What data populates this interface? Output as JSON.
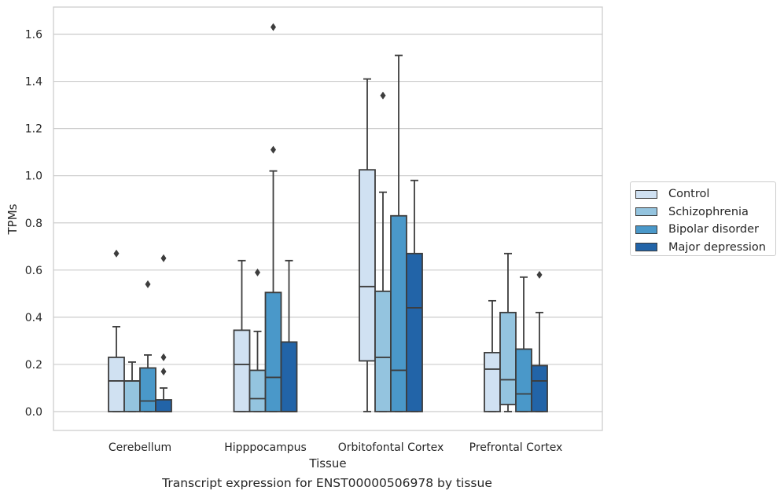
{
  "caption": "Transcript expression for ENST00000506978 by tissue",
  "chart_data": {
    "type": "box",
    "title": "",
    "xlabel": "Tissue",
    "ylabel": "TPMs",
    "ylim": [
      -0.08,
      1.72
    ],
    "yticks": [
      "0.0",
      "0.2",
      "0.4",
      "0.6",
      "0.8",
      "1.0",
      "1.2",
      "1.4",
      "1.6"
    ],
    "grid": "horizontal",
    "legend_position": "right",
    "categories": [
      "Cerebellum",
      "Hipppocampus",
      "Orbitofontal Cortex",
      "Prefrontal Cortex"
    ],
    "series": [
      {
        "name": "Control",
        "color": "#d0e1f2",
        "boxes": [
          {
            "whislo": 0.0,
            "q1": 0.0,
            "med": 0.13,
            "q3": 0.23,
            "whishi": 0.36,
            "fliers": [
              0.67
            ]
          },
          {
            "whislo": 0.0,
            "q1": 0.0,
            "med": 0.2,
            "q3": 0.345,
            "whishi": 0.64,
            "fliers": []
          },
          {
            "whislo": 0.0,
            "q1": 0.215,
            "med": 0.53,
            "q3": 1.025,
            "whishi": 1.41,
            "fliers": []
          },
          {
            "whislo": 0.0,
            "q1": 0.0,
            "med": 0.18,
            "q3": 0.25,
            "whishi": 0.47,
            "fliers": []
          }
        ]
      },
      {
        "name": "Schizophrenia",
        "color": "#94c4df",
        "boxes": [
          {
            "whislo": 0.0,
            "q1": 0.0,
            "med": 0.13,
            "q3": 0.13,
            "whishi": 0.21,
            "fliers": []
          },
          {
            "whislo": 0.0,
            "q1": 0.0,
            "med": 0.055,
            "q3": 0.175,
            "whishi": 0.34,
            "fliers": [
              0.59
            ]
          },
          {
            "whislo": 0.0,
            "q1": 0.0,
            "med": 0.23,
            "q3": 0.51,
            "whishi": 0.93,
            "fliers": [
              1.34
            ]
          },
          {
            "whislo": 0.0,
            "q1": 0.03,
            "med": 0.135,
            "q3": 0.42,
            "whishi": 0.67,
            "fliers": []
          }
        ]
      },
      {
        "name": "Bipolar disorder",
        "color": "#4a98c9",
        "boxes": [
          {
            "whislo": 0.0,
            "q1": 0.0,
            "med": 0.045,
            "q3": 0.185,
            "whishi": 0.24,
            "fliers": [
              0.54
            ]
          },
          {
            "whislo": 0.0,
            "q1": 0.0,
            "med": 0.145,
            "q3": 0.505,
            "whishi": 1.02,
            "fliers": [
              1.11,
              1.63
            ]
          },
          {
            "whislo": 0.0,
            "q1": 0.0,
            "med": 0.175,
            "q3": 0.83,
            "whishi": 1.51,
            "fliers": []
          },
          {
            "whislo": 0.0,
            "q1": 0.0,
            "med": 0.075,
            "q3": 0.265,
            "whishi": 0.57,
            "fliers": []
          }
        ]
      },
      {
        "name": "Major depression",
        "color": "#2264a8",
        "boxes": [
          {
            "whislo": 0.0,
            "q1": 0.0,
            "med": 0.0,
            "q3": 0.05,
            "whishi": 0.1,
            "fliers": [
              0.17,
              0.23,
              0.65
            ]
          },
          {
            "whislo": 0.0,
            "q1": 0.0,
            "med": 0.0,
            "q3": 0.295,
            "whishi": 0.64,
            "fliers": []
          },
          {
            "whislo": 0.0,
            "q1": 0.0,
            "med": 0.44,
            "q3": 0.67,
            "whishi": 0.98,
            "fliers": []
          },
          {
            "whislo": 0.0,
            "q1": 0.0,
            "med": 0.13,
            "q3": 0.195,
            "whishi": 0.42,
            "fliers": [
              0.58
            ]
          }
        ]
      }
    ]
  }
}
